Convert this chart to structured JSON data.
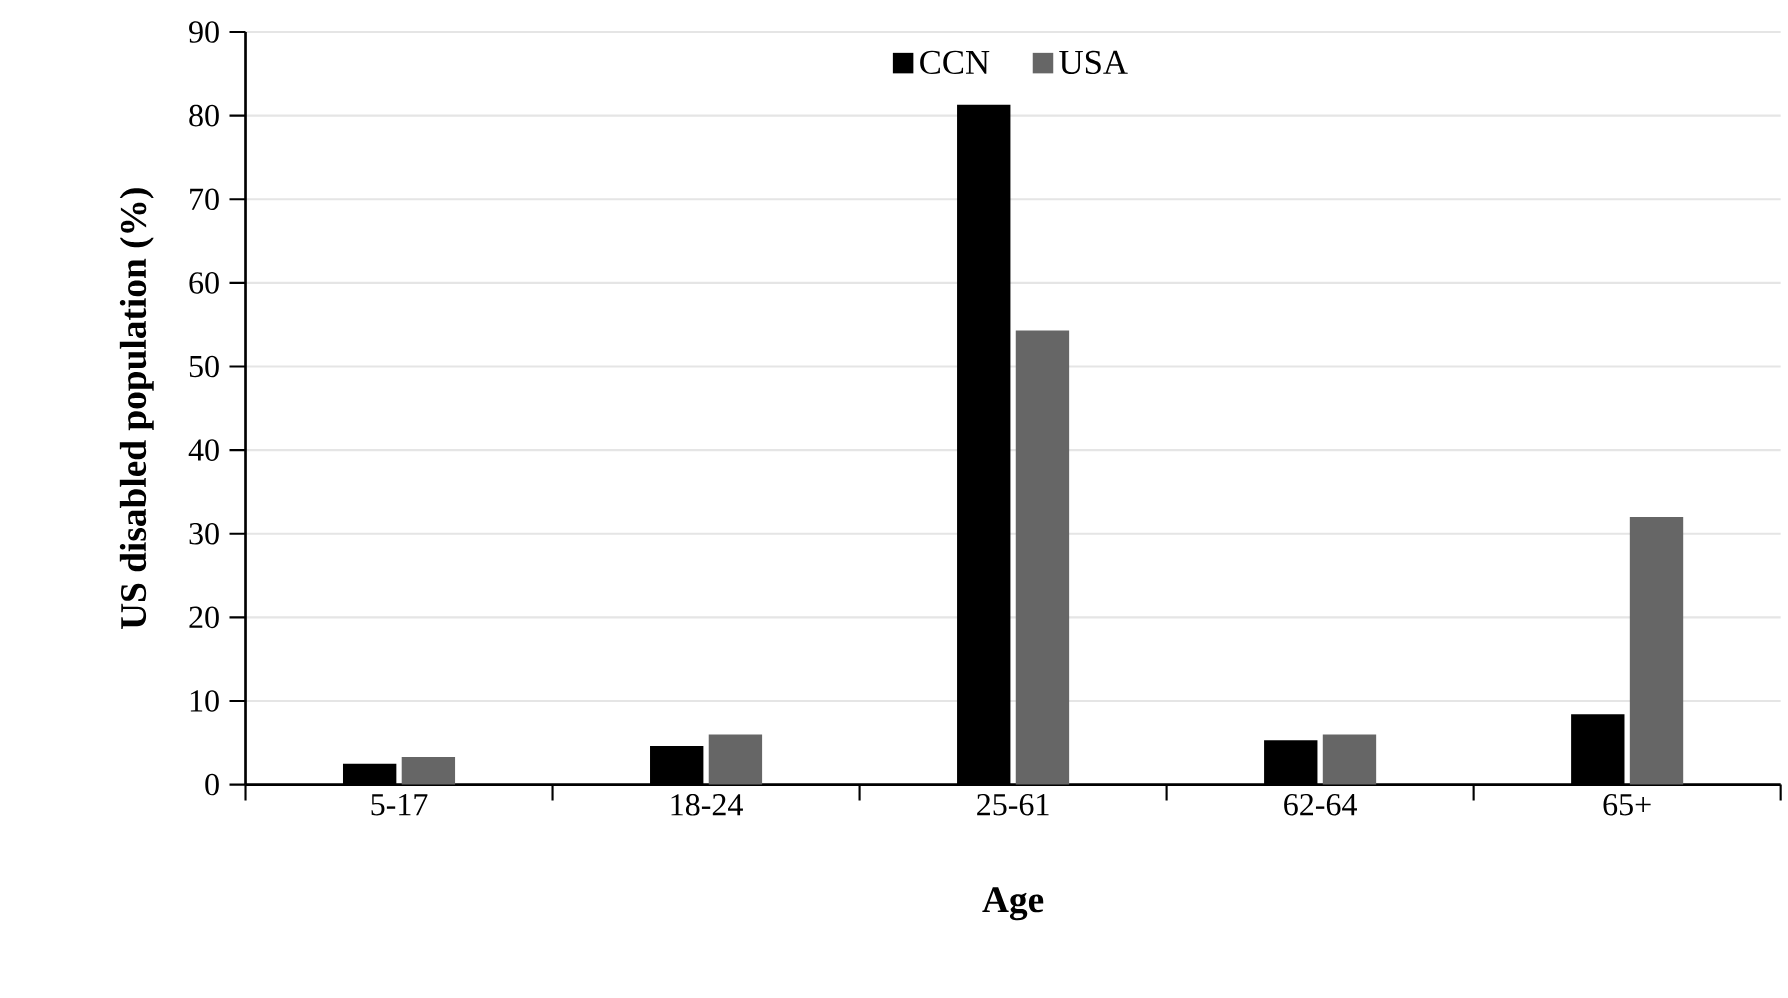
{
  "chart_data": {
    "type": "bar",
    "xlabel": "Age",
    "ylabel": "US disabled population (%)",
    "categories": [
      "5-17",
      "18-24",
      "25-61",
      "62-64",
      "65+"
    ],
    "series": [
      {
        "name": "CCN",
        "color": "#000000",
        "values": [
          2.5,
          4.6,
          81.3,
          5.3,
          8.4
        ]
      },
      {
        "name": "USA",
        "color": "#666666",
        "values": [
          3.3,
          6.0,
          54.3,
          6.0,
          32.0
        ]
      }
    ],
    "ylim": [
      0,
      90
    ],
    "yticks": [
      0,
      10,
      20,
      30,
      40,
      50,
      60,
      70,
      80,
      90
    ],
    "grid": "y",
    "legend": "top"
  }
}
